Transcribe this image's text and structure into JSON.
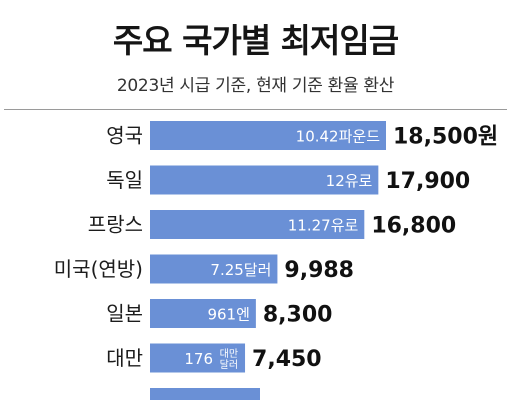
{
  "header": {
    "title": "주요 국가별 최저임금",
    "subtitle": "2023년 시급 기준, 현재 기준 환율 환산"
  },
  "chart_data": {
    "type": "bar",
    "orientation": "horizontal",
    "categories": [
      "영국",
      "독일",
      "프랑스",
      "미국(연방)",
      "일본",
      "대만"
    ],
    "values": [
      18500,
      17900,
      16800,
      9988,
      8300,
      7450
    ],
    "value_labels": [
      "18,500원",
      "17,900",
      "16,800",
      "9,988",
      "8,300",
      "7,450"
    ],
    "bar_labels": [
      "10.42파운드",
      "12유로",
      "11.27유로",
      "7.25달러",
      "961엔",
      "176"
    ],
    "bar_label_subs": [
      "",
      "",
      "",
      "",
      "",
      "대만 달러"
    ],
    "title": "주요 국가별 최저임금",
    "subtitle": "2023년 시급 기준, 현재 기준 환율 환산",
    "xlim": [
      0,
      18500
    ],
    "grid": false,
    "legend": "none",
    "colors": {
      "bar": "#6a90d6",
      "background": "#ffffff",
      "text": "#151515"
    }
  }
}
